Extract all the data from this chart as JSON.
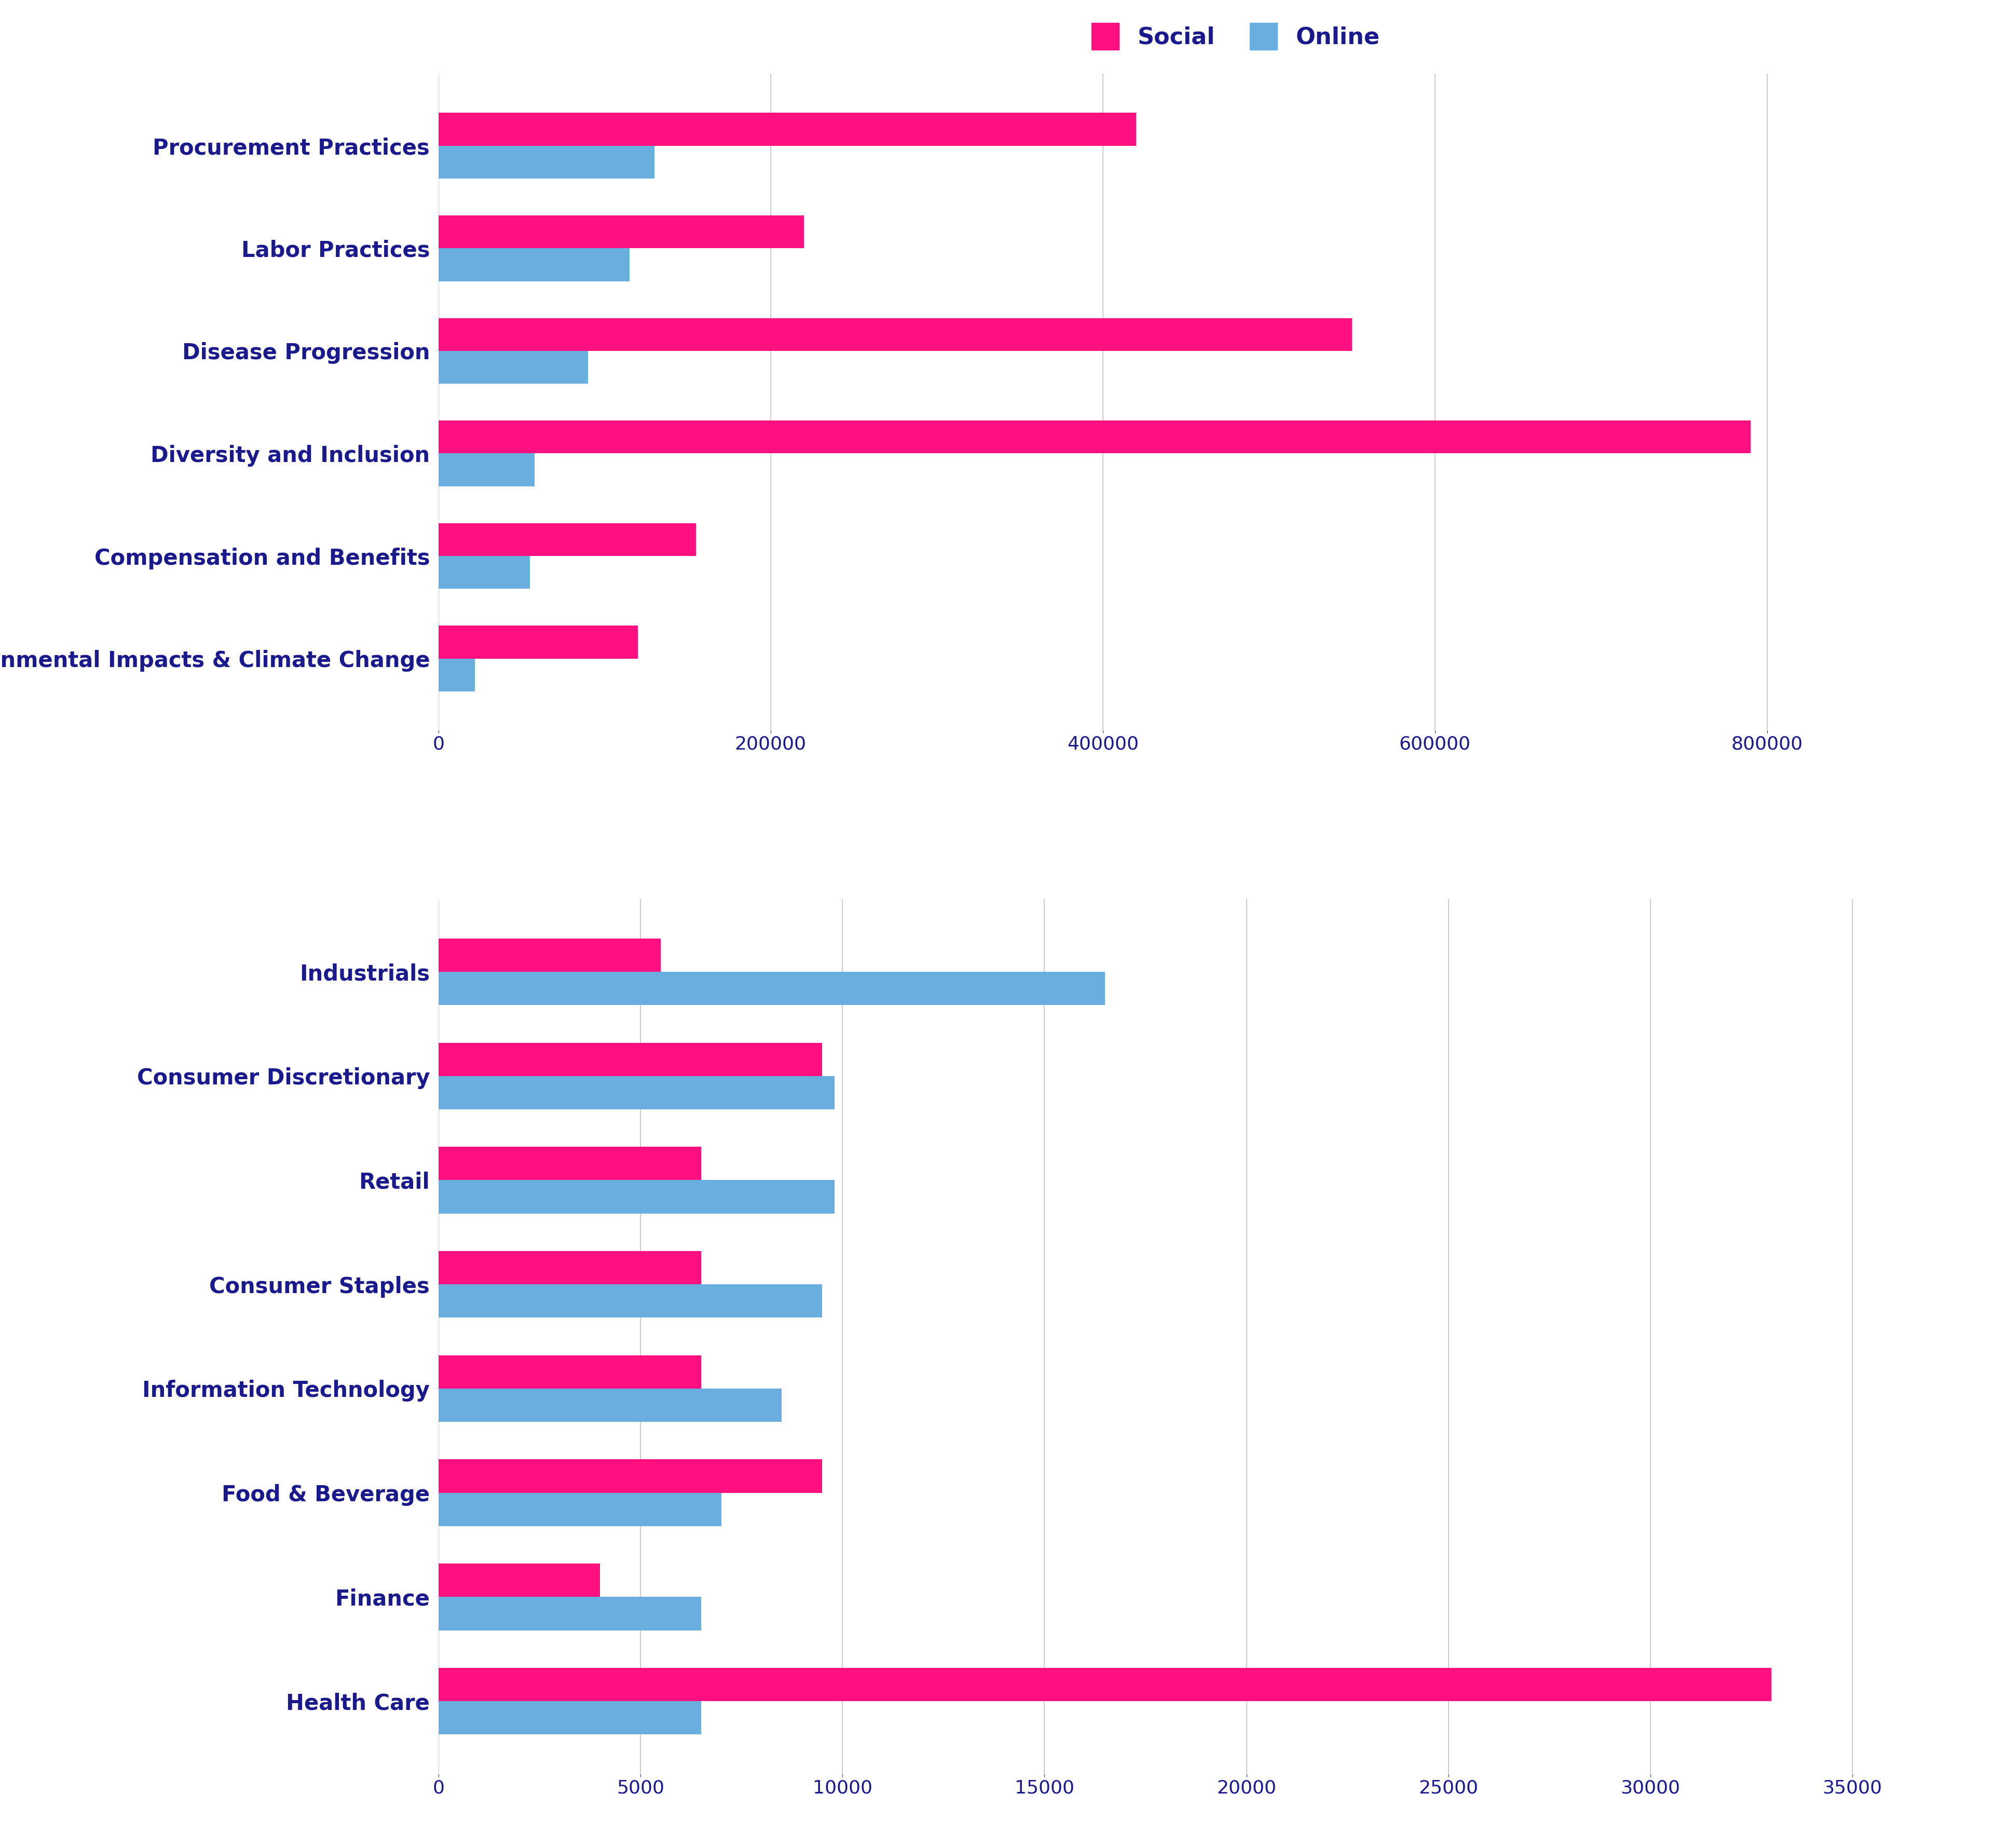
{
  "chart1": {
    "categories": [
      "Environmental Impacts & Climate Change",
      "Compensation and Benefits",
      "Diversity and Inclusion",
      "Disease Progression",
      "Labor Practices",
      "Procurement Practices"
    ],
    "social": [
      120000,
      155000,
      790000,
      550000,
      220000,
      420000
    ],
    "online": [
      22000,
      55000,
      58000,
      90000,
      115000,
      130000
    ],
    "xlim": [
      0,
      900000
    ],
    "xticks": [
      0,
      200000,
      400000,
      600000,
      800000
    ]
  },
  "chart2": {
    "categories": [
      "Health Care",
      "Finance",
      "Food & Beverage",
      "Information Technology",
      "Consumer Staples",
      "Retail",
      "Consumer Discretionary",
      "Industrials"
    ],
    "social": [
      33000,
      4000,
      9500,
      6500,
      6500,
      6500,
      9500,
      5500
    ],
    "online": [
      6500,
      6500,
      7000,
      8500,
      9500,
      9800,
      9800,
      16500
    ],
    "xlim": [
      0,
      37000
    ],
    "xticks": [
      0,
      5000,
      10000,
      15000,
      20000,
      25000,
      30000,
      35000
    ]
  },
  "social_color": "#FF1080",
  "online_color": "#6AAEE0",
  "label_color": "#1a1a8c",
  "tick_color": "#1a1a8c",
  "background_color": "#ffffff",
  "bar_height": 0.32,
  "label_fontsize": 30,
  "tick_fontsize": 26,
  "legend_fontsize": 32,
  "legend_marker_size": 20
}
